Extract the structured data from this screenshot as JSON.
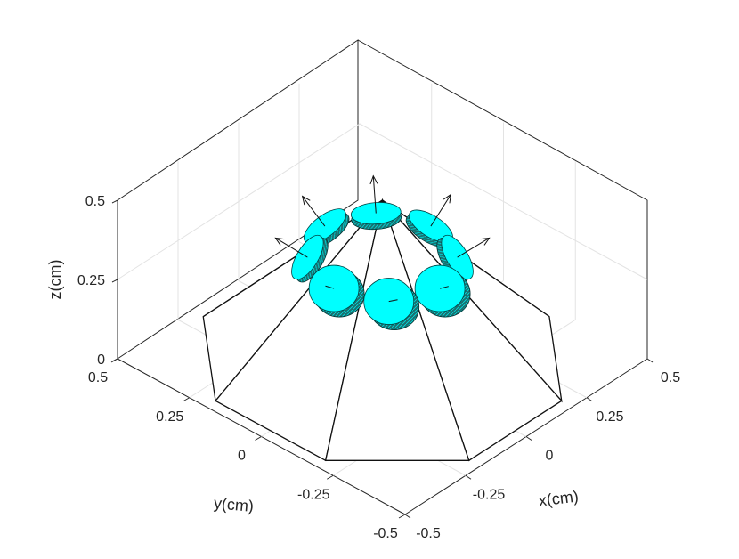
{
  "chart_data": {
    "type": "surface3d",
    "title": "",
    "xlabel": "x(cm)",
    "ylabel": "y(cm)",
    "zlabel": "z(cm)",
    "xlim": [
      -0.5,
      0.5
    ],
    "ylim": [
      -0.5,
      0.5
    ],
    "zlim": [
      0,
      0.5
    ],
    "x_ticks": [
      "-0.5",
      "-0.25",
      "0",
      "0.25",
      "0.5"
    ],
    "y_ticks": [
      "-0.5",
      "-0.25",
      "0",
      "0.25",
      "0.5"
    ],
    "z_ticks": [
      "0",
      "0.25",
      "0.5"
    ],
    "grid": true,
    "pyramid": {
      "apex": [
        0,
        0,
        0.5
      ],
      "base_sides": 8,
      "base_radius": 0.5,
      "base_z": 0
    },
    "disks": {
      "count": 8,
      "color": "#00ffff",
      "edge_color": "#003333",
      "radius": 0.1,
      "placement": "one per pyramid face, with normal arrow"
    },
    "colors": {
      "face": "#ffffff",
      "edge": "#111111",
      "disk": "#00ffff",
      "axes": "#262626",
      "grid": "#e3e3e3"
    }
  }
}
